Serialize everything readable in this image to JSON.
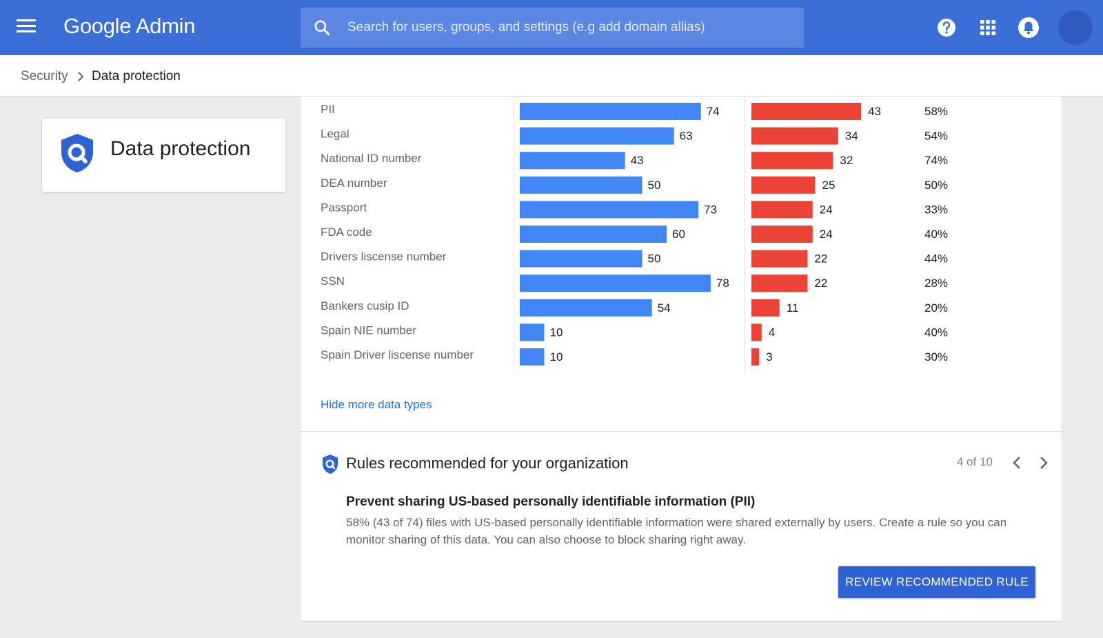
{
  "app": {
    "logo_text": "Google Admin",
    "search_placeholder": "Search for users, groups, and settings (e.g add domain allias)",
    "icons": [
      "menu-icon",
      "search-icon",
      "help-icon",
      "apps-grid-icon",
      "notifications-bell-icon"
    ]
  },
  "breadcrumb": {
    "items": [
      {
        "label": "Security"
      },
      {
        "label": "Data protection"
      }
    ]
  },
  "sidebar": {
    "title": "Data protection"
  },
  "colors": {
    "blue": "#4285f4",
    "red": "#ea4335",
    "header": "#3b6fd6",
    "button": "#2f62d3"
  },
  "chart_data": {
    "type": "bar",
    "categories": [
      "PII",
      "Legal",
      "National ID number",
      "DEA number",
      "Passport",
      "FDA code",
      "Drivers liscense number",
      "SSN",
      "Bankers cusip ID",
      "Spain NIE number",
      "Spain Driver liscense number"
    ],
    "series": [
      {
        "values": [
          74,
          63,
          43,
          50,
          73,
          60,
          50,
          78,
          54,
          10,
          10
        ]
      },
      {
        "values": [
          43,
          34,
          32,
          25,
          24,
          24,
          22,
          22,
          11,
          4,
          3
        ]
      }
    ],
    "percentages": [
      "58%",
      "54%",
      "74%",
      "50%",
      "33%",
      "40%",
      "44%",
      "28%",
      "20%",
      "40%",
      "30%"
    ]
  },
  "main": {
    "hide_link": "Hide more data types",
    "rules": {
      "title": "Rules recommended for your organization",
      "pager": "4 of 10",
      "heading": "Prevent sharing US-based personally identifiable information (PII)",
      "description": "58% (43 of 74) files with US-based personally identifiable information were shared externally by users. Create a rule so you can monitor sharing of this data. You can also choose to block sharing right away.",
      "button_label": "REVIEW RECOMMENDED RULE"
    }
  }
}
